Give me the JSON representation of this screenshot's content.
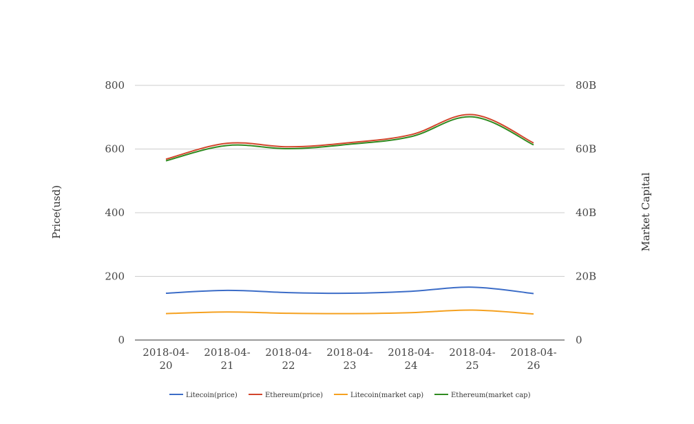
{
  "chart_data": {
    "type": "line",
    "categories": [
      "2018-04-20",
      "2018-04-21",
      "2018-04-22",
      "2018-04-23",
      "2018-04-24",
      "2018-04-25",
      "2018-04-26"
    ],
    "category_lines": [
      [
        "2018-04-",
        "20"
      ],
      [
        "2018-04-",
        "21"
      ],
      [
        "2018-04-",
        "22"
      ],
      [
        "2018-04-",
        "23"
      ],
      [
        "2018-04-",
        "24"
      ],
      [
        "2018-04-",
        "25"
      ],
      [
        "2018-04-",
        "26"
      ]
    ],
    "ylabel": "Price(usd)",
    "y2label": "Market Capital",
    "ylim": [
      0,
      800
    ],
    "y2lim": [
      0,
      80000000000
    ],
    "yticks": [
      "0",
      "200",
      "400",
      "600",
      "800"
    ],
    "y2ticks": [
      "0",
      "20B",
      "40B",
      "60B",
      "80B"
    ],
    "grid": true,
    "legend_position": "bottom",
    "series": [
      {
        "name": "Litecoin(price)",
        "axis": "left",
        "color": "#3b6cc7",
        "values": [
          147,
          156,
          149,
          147,
          153,
          166,
          146
        ]
      },
      {
        "name": "Ethereum(price)",
        "axis": "right",
        "color": "#d2452b",
        "values": [
          56800000000,
          61800000000,
          60700000000,
          62000000000,
          64500000000,
          70800000000,
          61900000000
        ]
      },
      {
        "name": "Litecoin(market cap)",
        "axis": "right",
        "color": "#f5a01e",
        "values": [
          8300000000,
          8800000000,
          8400000000,
          8300000000,
          8600000000,
          9400000000,
          8200000000
        ]
      },
      {
        "name": "Ethereum(market cap)",
        "axis": "right",
        "color": "#2f8a1f",
        "values": [
          56300000000,
          61100000000,
          60100000000,
          61500000000,
          63900000000,
          70100000000,
          61300000000
        ]
      }
    ]
  }
}
